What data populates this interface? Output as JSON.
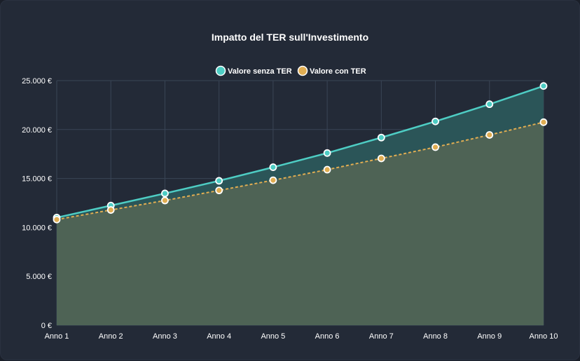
{
  "chart_data": {
    "type": "line",
    "title": "Impatto del TER sull'Investimento",
    "categories": [
      "Anno 1",
      "Anno 2",
      "Anno 3",
      "Anno 4",
      "Anno 5",
      "Anno 6",
      "Anno 7",
      "Anno 8",
      "Anno 9",
      "Anno 10"
    ],
    "series": [
      {
        "name": "Valore senza TER",
        "color": "#4ecdc4",
        "fill": "#2b5558",
        "line_style": "solid",
        "values": [
          11000,
          12230,
          13470,
          14760,
          16150,
          17600,
          19180,
          20830,
          22590,
          24450
        ]
      },
      {
        "name": "Valore con TER",
        "color": "#e0ad52",
        "fill": "#4e6355",
        "line_style": "dashed",
        "values": [
          10800,
          11780,
          12750,
          13780,
          14820,
          15900,
          17050,
          18200,
          19450,
          20750
        ]
      }
    ],
    "y_tick_labels": [
      "0 €",
      "5.000 €",
      "10.000 €",
      "15.000 €",
      "20.000 €",
      "25.000 €"
    ],
    "y_tick_values": [
      0,
      5000,
      10000,
      15000,
      20000,
      25000
    ],
    "ylim": [
      0,
      25000
    ],
    "xlabel": "",
    "ylabel": "",
    "grid": true,
    "legend_position": "top"
  }
}
